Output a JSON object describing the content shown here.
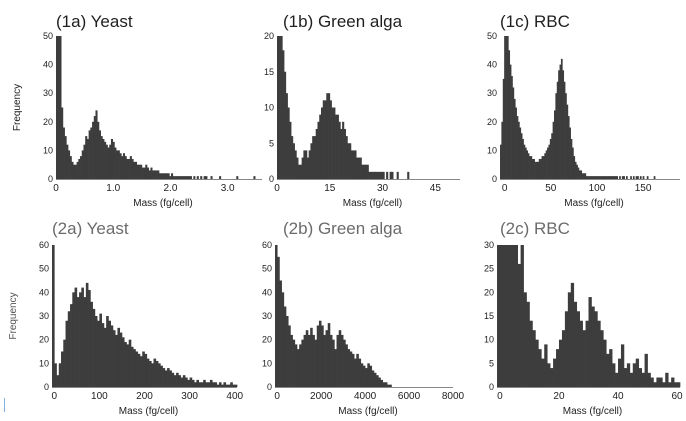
{
  "chart_data": [
    {
      "type": "bar",
      "title": "(1a) Yeast",
      "xlabel": "Mass (fg/cell)",
      "ylabel": "Frequency",
      "xlim": [
        0,
        3.6
      ],
      "ylim": [
        0,
        50
      ],
      "xticks": [
        {
          "v": 0,
          "label": "0"
        },
        {
          "v": 1,
          "label": "1.0"
        },
        {
          "v": 2,
          "label": "2.0"
        },
        {
          "v": 3,
          "label": "3.0"
        }
      ],
      "yticks": [
        0,
        10,
        20,
        30,
        40,
        50
      ],
      "bin_start": 0,
      "bin_width": 0.03,
      "values": [
        50,
        50,
        50,
        25,
        18,
        15,
        12,
        10,
        8,
        6,
        5,
        5,
        6,
        7,
        8,
        10,
        12,
        15,
        14,
        17,
        18,
        20,
        22,
        24,
        20,
        17,
        15,
        14,
        13,
        12,
        11,
        12,
        14,
        13,
        11,
        10,
        10,
        9,
        8,
        9,
        8,
        7,
        7,
        8,
        7,
        6,
        6,
        5,
        5,
        5,
        4,
        4,
        5,
        4,
        3,
        4,
        3,
        3,
        3,
        3,
        2,
        2,
        2,
        2,
        2,
        2,
        1,
        2,
        1,
        1,
        1,
        1,
        1,
        1,
        1,
        1,
        1,
        1,
        1,
        0,
        1,
        0,
        1,
        0,
        1,
        0,
        1,
        1,
        0,
        0,
        1,
        0,
        0,
        0,
        0,
        1,
        0,
        0,
        0,
        0,
        0,
        0,
        0,
        0,
        0,
        1,
        0,
        0,
        0,
        0,
        0,
        0,
        0,
        0,
        0,
        1,
        0,
        0,
        0,
        0
      ]
    },
    {
      "type": "bar",
      "title": "(1b) Green alga",
      "xlabel": "Mass (fg/cell)",
      "ylabel": "",
      "xlim": [
        0,
        52
      ],
      "ylim": [
        0,
        20
      ],
      "xticks": [
        {
          "v": 0,
          "label": "0"
        },
        {
          "v": 15,
          "label": "15"
        },
        {
          "v": 30,
          "label": "30"
        },
        {
          "v": 45,
          "label": "45"
        }
      ],
      "yticks": [
        0,
        5,
        10,
        15,
        20
      ],
      "bin_start": 0,
      "bin_width": 0.5,
      "values": [
        20,
        20,
        20,
        18,
        15,
        12,
        10,
        8,
        6,
        5,
        4,
        3,
        2,
        2,
        3,
        4,
        4,
        3,
        4,
        5,
        6,
        6,
        7,
        8,
        9,
        10,
        11,
        11,
        12,
        12,
        11,
        10,
        10,
        9,
        9,
        8,
        7,
        8,
        7,
        6,
        5,
        5,
        4,
        4,
        4,
        3,
        3,
        3,
        2,
        2,
        2,
        2,
        1,
        1,
        1,
        1,
        1,
        1,
        1,
        1,
        1,
        0,
        1,
        0,
        1,
        1,
        0,
        0,
        1,
        0,
        0,
        0,
        0,
        0,
        1,
        0,
        0,
        0,
        0,
        0,
        0,
        0,
        0,
        0,
        0,
        0,
        0,
        0,
        0,
        0,
        0,
        0,
        0,
        0,
        0,
        0,
        0,
        0,
        0,
        0,
        0,
        0,
        0,
        0
      ]
    },
    {
      "type": "bar",
      "title": "(1c) RBC",
      "xlabel": "Mass (fg/cell)",
      "ylabel": "",
      "xlim": [
        -5,
        190
      ],
      "ylim": [
        0,
        50
      ],
      "xticks": [
        {
          "v": 0,
          "label": "0"
        },
        {
          "v": 50,
          "label": "50"
        },
        {
          "v": 100,
          "label": "100"
        },
        {
          "v": 150,
          "label": "150"
        }
      ],
      "yticks": [
        0,
        10,
        20,
        30,
        40,
        50
      ],
      "bin_start": -5,
      "bin_width": 1.5,
      "values": [
        12,
        20,
        35,
        50,
        50,
        50,
        45,
        40,
        36,
        32,
        28,
        25,
        22,
        20,
        18,
        16,
        14,
        12,
        11,
        10,
        9,
        8,
        8,
        7,
        7,
        6,
        6,
        6,
        7,
        7,
        8,
        8,
        9,
        10,
        11,
        12,
        14,
        16,
        20,
        24,
        30,
        34,
        38,
        40,
        42,
        38,
        34,
        30,
        26,
        22,
        18,
        14,
        11,
        8,
        6,
        5,
        4,
        3,
        3,
        2,
        2,
        2,
        1,
        1,
        1,
        1,
        1,
        1,
        1,
        1,
        1,
        1,
        1,
        1,
        1,
        1,
        1,
        1,
        1,
        1,
        1,
        1,
        1,
        1,
        1,
        0,
        1,
        0,
        1,
        1,
        0,
        1,
        0,
        0,
        1,
        0,
        1,
        0,
        1,
        1,
        0,
        1,
        0,
        1,
        0,
        0,
        1,
        0,
        0,
        0,
        0,
        1,
        0,
        0,
        0,
        0,
        0,
        0,
        0,
        0,
        0,
        0,
        0,
        0,
        0,
        0,
        0,
        0,
        0,
        0,
        0
      ]
    },
    {
      "type": "bar",
      "title": "(2a) Yeast",
      "xlabel": "Mass (fg/cell)",
      "ylabel": "Frequency",
      "xlim": [
        -5,
        405
      ],
      "ylim": [
        0,
        60
      ],
      "xticks": [
        {
          "v": 0,
          "label": "0"
        },
        {
          "v": 100,
          "label": "100"
        },
        {
          "v": 200,
          "label": "200"
        },
        {
          "v": 300,
          "label": "300"
        },
        {
          "v": 400,
          "label": "400"
        }
      ],
      "yticks": [
        0,
        10,
        20,
        30,
        40,
        50,
        60
      ],
      "bin_start": -5,
      "bin_width": 5,
      "values": [
        60,
        10,
        5,
        10,
        15,
        20,
        28,
        32,
        35,
        40,
        42,
        38,
        40,
        42,
        38,
        44,
        41,
        36,
        33,
        30,
        28,
        31,
        27,
        25,
        30,
        28,
        26,
        24,
        22,
        25,
        23,
        21,
        19,
        18,
        20,
        17,
        16,
        15,
        14,
        13,
        15,
        14,
        12,
        11,
        10,
        12,
        11,
        10,
        9,
        8,
        7,
        8,
        7,
        6,
        5,
        6,
        5,
        4,
        5,
        4,
        3,
        4,
        3,
        2,
        3,
        2,
        2,
        3,
        2,
        2,
        3,
        2,
        2,
        1,
        2,
        1,
        2,
        1,
        1,
        2,
        1,
        1,
        0
      ]
    },
    {
      "type": "bar",
      "title": "(2b) Green alga",
      "xlabel": "Mass (fg/cell)",
      "ylabel": "",
      "xlim": [
        -100,
        8000
      ],
      "ylim": [
        0,
        60
      ],
      "xticks": [
        {
          "v": 0,
          "label": "0"
        },
        {
          "v": 2000,
          "label": "2000"
        },
        {
          "v": 4000,
          "label": "4000"
        },
        {
          "v": 6000,
          "label": "6000"
        },
        {
          "v": 8000,
          "label": "8000"
        }
      ],
      "yticks": [
        0,
        10,
        20,
        30,
        40,
        50,
        60
      ],
      "bin_start": -100,
      "bin_width": 100,
      "values": [
        60,
        55,
        45,
        40,
        34,
        30,
        26,
        22,
        20,
        18,
        16,
        18,
        20,
        22,
        24,
        22,
        25,
        22,
        20,
        26,
        28,
        26,
        22,
        24,
        27,
        22,
        20,
        16,
        22,
        24,
        22,
        20,
        18,
        16,
        15,
        14,
        12,
        14,
        12,
        10,
        9,
        8,
        10,
        9,
        7,
        6,
        5,
        4,
        3,
        2,
        2,
        1,
        1,
        0,
        0,
        0,
        0,
        0,
        0,
        0,
        0,
        0,
        0,
        0,
        0,
        0,
        0,
        0,
        0,
        0,
        0,
        0,
        0,
        0,
        0,
        0,
        0,
        0,
        0,
        0,
        0
      ]
    },
    {
      "type": "bar",
      "title": "(2c) RBC",
      "xlabel": "Mass (fg/cell)",
      "ylabel": "",
      "xlim": [
        -1,
        61
      ],
      "ylim": [
        0,
        30
      ],
      "xticks": [
        {
          "v": 0,
          "label": "0"
        },
        {
          "v": 20,
          "label": "20"
        },
        {
          "v": 40,
          "label": "40"
        },
        {
          "v": 60,
          "label": "60"
        }
      ],
      "yticks": [
        0,
        5,
        10,
        15,
        20,
        25,
        30
      ],
      "bin_start": -1,
      "bin_width": 1,
      "values": [
        30,
        30,
        30,
        30,
        30,
        30,
        30,
        26,
        30,
        20,
        18,
        14,
        12,
        10,
        8,
        6,
        9,
        5,
        4,
        6,
        8,
        10,
        12,
        16,
        20,
        22,
        18,
        16,
        14,
        12,
        14,
        19,
        17,
        16,
        14,
        12,
        10,
        7,
        8,
        5,
        3,
        6,
        9,
        4,
        5,
        3,
        5,
        6,
        4,
        3,
        7,
        3,
        2,
        1,
        2,
        2,
        1,
        3,
        1,
        2,
        1,
        1
      ]
    }
  ]
}
